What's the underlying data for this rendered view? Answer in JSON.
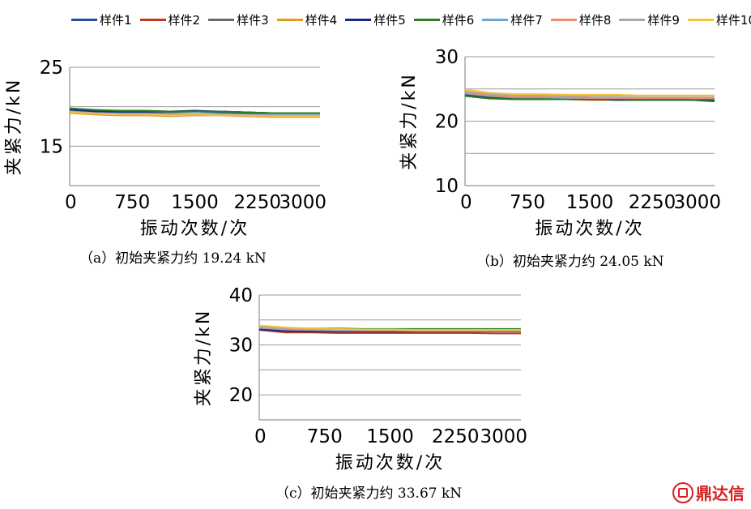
{
  "legend": [
    {
      "name": "样件1",
      "color": "#1f4e9c"
    },
    {
      "name": "样件2",
      "color": "#c0391b"
    },
    {
      "name": "样件3",
      "color": "#6b6b6b"
    },
    {
      "name": "样件4",
      "color": "#e39a1b"
    },
    {
      "name": "样件5",
      "color": "#142a8a"
    },
    {
      "name": "样件6",
      "color": "#2b7d1e"
    },
    {
      "name": "样件7",
      "color": "#6ea3d9"
    },
    {
      "name": "样件8",
      "color": "#ec8c6a"
    },
    {
      "name": "样件9",
      "color": "#a8a8a8"
    },
    {
      "name": "样件10",
      "color": "#f2c23d"
    }
  ],
  "chart_data": [
    {
      "type": "line",
      "caption": "（a）初始夹紧力约 19.24 kN",
      "xlabel": "振动次数/次",
      "ylabel": "夹紧力/kN",
      "xlim": [
        0,
        3000
      ],
      "ylim": [
        10,
        25
      ],
      "xticks": [
        "0",
        "750",
        "1500",
        "2250",
        "3000"
      ],
      "yticks": [
        "15",
        "25"
      ],
      "grid_values": [
        15,
        20,
        25
      ],
      "x": [
        0,
        300,
        600,
        900,
        1200,
        1500,
        1800,
        2100,
        2400,
        2700,
        3000
      ],
      "series": [
        {
          "name": "样件1",
          "values": [
            19.6,
            19.4,
            19.3,
            19.3,
            19.3,
            19.4,
            19.3,
            19.2,
            19.1,
            19.1,
            19.1
          ]
        },
        {
          "name": "样件2",
          "values": [
            19.3,
            19.1,
            19.0,
            19.0,
            19.0,
            19.1,
            19.0,
            18.9,
            18.9,
            18.9,
            18.9
          ]
        },
        {
          "name": "样件3",
          "values": [
            19.7,
            19.5,
            19.4,
            19.4,
            19.3,
            19.4,
            19.4,
            19.3,
            19.2,
            19.2,
            19.2
          ]
        },
        {
          "name": "样件4",
          "values": [
            19.2,
            19.0,
            18.9,
            18.9,
            18.8,
            18.9,
            18.9,
            18.8,
            18.7,
            18.7,
            18.7
          ]
        },
        {
          "name": "样件5",
          "values": [
            19.6,
            19.4,
            19.4,
            19.4,
            19.4,
            19.5,
            19.4,
            19.3,
            19.2,
            19.2,
            19.2
          ]
        },
        {
          "name": "样件6",
          "values": [
            19.8,
            19.6,
            19.5,
            19.5,
            19.4,
            19.4,
            19.4,
            19.3,
            19.2,
            19.2,
            19.2
          ]
        },
        {
          "name": "样件7",
          "values": [
            19.4,
            19.2,
            19.1,
            19.1,
            19.1,
            19.1,
            19.1,
            19.0,
            19.0,
            19.0,
            19.0
          ]
        },
        {
          "name": "样件8",
          "values": [
            19.3,
            19.1,
            19.0,
            19.0,
            18.9,
            18.9,
            18.9,
            18.8,
            18.8,
            18.8,
            18.8
          ]
        },
        {
          "name": "样件9",
          "values": [
            19.4,
            19.2,
            19.1,
            19.1,
            19.0,
            19.0,
            19.0,
            18.9,
            18.9,
            18.9,
            18.9
          ]
        },
        {
          "name": "样件10",
          "values": [
            19.3,
            19.1,
            19.0,
            19.0,
            18.9,
            19.0,
            18.9,
            18.9,
            18.8,
            18.8,
            18.8
          ]
        }
      ]
    },
    {
      "type": "line",
      "caption": "（b）初始夹紧力约 24.05 kN",
      "xlabel": "振动次数/次",
      "ylabel": "夹紧力/kN",
      "xlim": [
        0,
        3000
      ],
      "ylim": [
        10,
        30
      ],
      "xticks": [
        "0",
        "750",
        "1500",
        "2250",
        "3000"
      ],
      "yticks": [
        "10",
        "20",
        "30"
      ],
      "grid_values": [
        15,
        20,
        25,
        30
      ],
      "x": [
        0,
        300,
        600,
        900,
        1200,
        1500,
        1800,
        2100,
        2400,
        2700,
        3000
      ],
      "series": [
        {
          "name": "样件1",
          "values": [
            24.0,
            23.6,
            23.5,
            23.4,
            23.4,
            23.5,
            23.3,
            23.3,
            23.3,
            23.3,
            23.2
          ]
        },
        {
          "name": "样件2",
          "values": [
            24.1,
            23.7,
            23.5,
            23.5,
            23.4,
            23.3,
            23.3,
            23.3,
            23.4,
            23.4,
            23.3
          ]
        },
        {
          "name": "样件3",
          "values": [
            24.2,
            23.8,
            23.6,
            23.5,
            23.5,
            23.6,
            23.5,
            23.4,
            23.4,
            23.4,
            23.4
          ]
        },
        {
          "name": "样件4",
          "values": [
            24.5,
            24.0,
            23.8,
            23.7,
            23.7,
            23.6,
            23.5,
            23.5,
            23.5,
            23.5,
            23.5
          ]
        },
        {
          "name": "样件5",
          "values": [
            24.0,
            23.6,
            23.4,
            23.4,
            23.4,
            23.5,
            23.3,
            23.3,
            23.3,
            23.3,
            23.1
          ]
        },
        {
          "name": "样件6",
          "values": [
            23.9,
            23.5,
            23.4,
            23.4,
            23.4,
            23.4,
            23.4,
            23.3,
            23.3,
            23.3,
            23.3
          ]
        },
        {
          "name": "样件7",
          "values": [
            24.3,
            23.9,
            23.7,
            23.7,
            23.6,
            23.6,
            23.6,
            23.6,
            23.6,
            23.6,
            23.6
          ]
        },
        {
          "name": "样件8",
          "values": [
            24.4,
            24.0,
            23.8,
            23.8,
            23.7,
            23.6,
            23.6,
            23.6,
            23.6,
            23.6,
            23.6
          ]
        },
        {
          "name": "样件9",
          "values": [
            24.6,
            24.2,
            24.0,
            24.0,
            23.9,
            23.9,
            23.9,
            23.9,
            23.9,
            23.9,
            23.9
          ]
        },
        {
          "name": "样件10",
          "values": [
            24.9,
            24.4,
            24.2,
            24.2,
            24.1,
            24.1,
            24.1,
            24.0,
            24.0,
            24.0,
            24.0
          ]
        }
      ]
    },
    {
      "type": "line",
      "caption": "（c）初始夹紧力约 33.67 kN",
      "xlabel": "振动次数/次",
      "ylabel": "夹紧力/kN",
      "xlim": [
        0,
        3000
      ],
      "ylim": [
        15,
        40
      ],
      "xticks": [
        "0",
        "750",
        "1500",
        "2250",
        "3000"
      ],
      "yticks": [
        "20",
        "30",
        "40"
      ],
      "grid_values": [
        20,
        25,
        30,
        35,
        40
      ],
      "x": [
        0,
        300,
        600,
        900,
        1200,
        1500,
        1800,
        2100,
        2400,
        2700,
        3000
      ],
      "series": [
        {
          "name": "样件1",
          "values": [
            33.2,
            32.8,
            32.7,
            32.7,
            32.7,
            32.7,
            32.7,
            32.7,
            32.7,
            32.7,
            32.7
          ]
        },
        {
          "name": "样件2",
          "values": [
            33.0,
            32.5,
            32.5,
            32.4,
            32.4,
            32.4,
            32.4,
            32.4,
            32.4,
            32.3,
            32.3
          ]
        },
        {
          "name": "样件3",
          "values": [
            33.3,
            33.0,
            33.0,
            32.9,
            32.9,
            32.9,
            32.9,
            32.9,
            32.9,
            32.9,
            32.9
          ]
        },
        {
          "name": "样件4",
          "values": [
            33.6,
            33.2,
            33.1,
            33.0,
            33.0,
            32.9,
            32.9,
            32.9,
            32.9,
            32.9,
            32.9
          ]
        },
        {
          "name": "样件5",
          "values": [
            33.1,
            32.8,
            32.7,
            32.7,
            32.7,
            32.7,
            32.7,
            32.7,
            32.7,
            32.7,
            32.7
          ]
        },
        {
          "name": "样件6",
          "values": [
            33.6,
            33.4,
            33.3,
            33.3,
            33.2,
            33.2,
            33.2,
            33.2,
            33.2,
            33.2,
            33.2
          ]
        },
        {
          "name": "样件7",
          "values": [
            33.4,
            33.1,
            33.0,
            33.0,
            32.9,
            32.9,
            32.9,
            32.9,
            32.9,
            32.9,
            32.9
          ]
        },
        {
          "name": "样件8",
          "values": [
            33.8,
            33.3,
            33.1,
            33.0,
            33.0,
            33.0,
            33.0,
            33.0,
            33.0,
            33.0,
            33.0
          ]
        },
        {
          "name": "样件9",
          "values": [
            33.5,
            33.1,
            33.0,
            32.9,
            32.9,
            32.9,
            32.8,
            32.8,
            32.8,
            32.8,
            32.8
          ]
        },
        {
          "name": "样件10",
          "values": [
            33.9,
            33.5,
            33.3,
            33.2,
            33.1,
            33.1,
            33.0,
            33.0,
            33.0,
            33.0,
            33.0
          ]
        }
      ]
    }
  ],
  "watermark": {
    "text": "鼎达信"
  }
}
